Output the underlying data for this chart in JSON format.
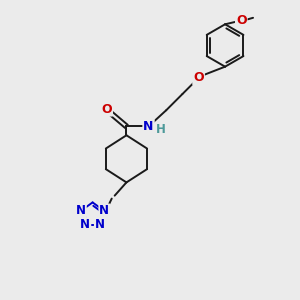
{
  "bg_color": "#ebebeb",
  "bond_color": "#1a1a1a",
  "nitrogen_color": "#0000cc",
  "oxygen_color": "#cc0000",
  "teal_color": "#4d9999",
  "fig_width": 3.0,
  "fig_height": 3.0,
  "dpi": 100,
  "xlim": [
    0,
    10
  ],
  "ylim": [
    0,
    10
  ],
  "bond_lw": 1.4,
  "font_size": 8.5
}
